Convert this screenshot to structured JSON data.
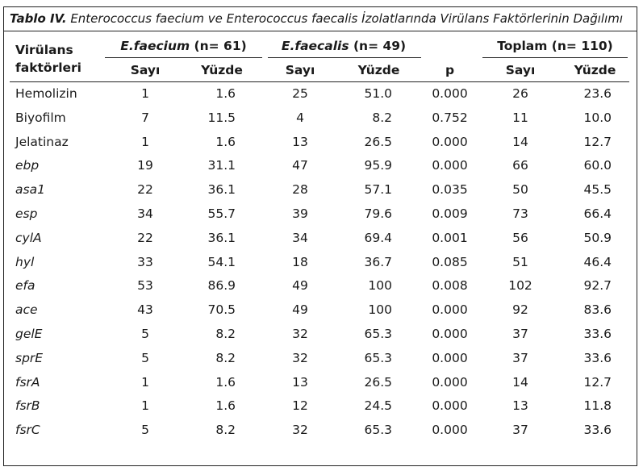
{
  "caption": {
    "label": "Tablo IV.",
    "text": " Enterococcus faecium ve Enterococcus faecalis İzolatlarında Virülans Faktörlerinin Dağılımı"
  },
  "headers": {
    "factor_line1": "Virülans",
    "factor_line2": "faktörleri",
    "group1_name": "E.faecium",
    "group1_n": " (n= 61)",
    "group2_name": "E.faecalis",
    "group2_n": " (n= 49)",
    "group3": "Toplam (n= 110)",
    "count": "Sayı",
    "percent": "Yüzde",
    "p": "p"
  },
  "rows": [
    {
      "factor": "Hemolizin",
      "italic": false,
      "fc_n": "1",
      "fc_pct": "1.6",
      "fs_n": "25",
      "fs_pct": "51.0",
      "p": "0.000",
      "t_n": "26",
      "t_pct": "23.6"
    },
    {
      "factor": "Biyofilm",
      "italic": false,
      "fc_n": "7",
      "fc_pct": "11.5",
      "fs_n": "4",
      "fs_pct": "8.2",
      "p": "0.752",
      "t_n": "11",
      "t_pct": "10.0"
    },
    {
      "factor": "Jelatinaz",
      "italic": false,
      "fc_n": "1",
      "fc_pct": "1.6",
      "fs_n": "13",
      "fs_pct": "26.5",
      "p": "0.000",
      "t_n": "14",
      "t_pct": "12.7"
    },
    {
      "factor": "ebp",
      "italic": true,
      "fc_n": "19",
      "fc_pct": "31.1",
      "fs_n": "47",
      "fs_pct": "95.9",
      "p": "0.000",
      "t_n": "66",
      "t_pct": "60.0"
    },
    {
      "factor": "asa1",
      "italic": true,
      "fc_n": "22",
      "fc_pct": "36.1",
      "fs_n": "28",
      "fs_pct": "57.1",
      "p": "0.035",
      "t_n": "50",
      "t_pct": "45.5"
    },
    {
      "factor": "esp",
      "italic": true,
      "fc_n": "34",
      "fc_pct": "55.7",
      "fs_n": "39",
      "fs_pct": "79.6",
      "p": "0.009",
      "t_n": "73",
      "t_pct": "66.4"
    },
    {
      "factor": "cylA",
      "italic": true,
      "fc_n": "22",
      "fc_pct": "36.1",
      "fs_n": "34",
      "fs_pct": "69.4",
      "p": "0.001",
      "t_n": "56",
      "t_pct": "50.9"
    },
    {
      "factor": "hyl",
      "italic": true,
      "fc_n": "33",
      "fc_pct": "54.1",
      "fs_n": "18",
      "fs_pct": "36.7",
      "p": "0.085",
      "t_n": "51",
      "t_pct": "46.4"
    },
    {
      "factor": "efa",
      "italic": true,
      "fc_n": "53",
      "fc_pct": "86.9",
      "fs_n": "49",
      "fs_pct": "100",
      "p": "0.008",
      "t_n": "102",
      "t_pct": "92.7"
    },
    {
      "factor": "ace",
      "italic": true,
      "fc_n": "43",
      "fc_pct": "70.5",
      "fs_n": "49",
      "fs_pct": "100",
      "p": "0.000",
      "t_n": "92",
      "t_pct": "83.6"
    },
    {
      "factor": "gelE",
      "italic": true,
      "fc_n": "5",
      "fc_pct": "8.2",
      "fs_n": "32",
      "fs_pct": "65.3",
      "p": "0.000",
      "t_n": "37",
      "t_pct": "33.6"
    },
    {
      "factor": "sprE",
      "italic": true,
      "fc_n": "5",
      "fc_pct": "8.2",
      "fs_n": "32",
      "fs_pct": "65.3",
      "p": "0.000",
      "t_n": "37",
      "t_pct": "33.6"
    },
    {
      "factor": "fsrA",
      "italic": true,
      "fc_n": "1",
      "fc_pct": "1.6",
      "fs_n": "13",
      "fs_pct": "26.5",
      "p": "0.000",
      "t_n": "14",
      "t_pct": "12.7"
    },
    {
      "factor": "fsrB",
      "italic": true,
      "fc_n": "1",
      "fc_pct": "1.6",
      "fs_n": "12",
      "fs_pct": "24.5",
      "p": "0.000",
      "t_n": "13",
      "t_pct": "11.8"
    },
    {
      "factor": "fsrC",
      "italic": true,
      "fc_n": "5",
      "fc_pct": "8.2",
      "fs_n": "32",
      "fs_pct": "65.3",
      "p": "0.000",
      "t_n": "37",
      "t_pct": "33.6"
    }
  ]
}
